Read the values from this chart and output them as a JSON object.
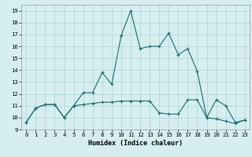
{
  "title": "",
  "xlabel": "Humidex (Indice chaleur)",
  "bg_color": "#d6eef0",
  "grid_color": "#b0d8dc",
  "line_color": "#1a6b6b",
  "xlim": [
    -0.5,
    23.5
  ],
  "ylim": [
    9,
    19.5
  ],
  "xticks": [
    0,
    1,
    2,
    3,
    4,
    5,
    6,
    7,
    8,
    9,
    10,
    11,
    12,
    13,
    14,
    15,
    16,
    17,
    18,
    19,
    20,
    21,
    22,
    23
  ],
  "yticks": [
    9,
    10,
    11,
    12,
    13,
    14,
    15,
    16,
    17,
    18,
    19
  ],
  "series1_x": [
    0,
    1,
    2,
    3,
    4,
    5,
    6,
    7,
    8,
    9,
    10,
    11,
    12,
    13,
    14,
    15,
    16,
    17,
    18,
    19,
    20,
    21,
    22,
    23
  ],
  "series1_y": [
    9.6,
    10.8,
    11.1,
    11.1,
    10.0,
    11.0,
    12.1,
    12.1,
    13.8,
    12.8,
    16.9,
    19.0,
    15.8,
    16.0,
    16.0,
    17.1,
    15.3,
    15.8,
    13.9,
    10.0,
    11.5,
    11.0,
    9.6,
    9.8
  ],
  "series2_x": [
    0,
    1,
    2,
    3,
    4,
    5,
    6,
    7,
    8,
    9,
    10,
    11,
    12,
    13,
    14,
    15,
    16,
    17,
    18,
    19,
    20,
    21,
    22,
    23
  ],
  "series2_y": [
    9.6,
    10.8,
    11.1,
    11.1,
    10.0,
    11.0,
    11.1,
    11.2,
    11.3,
    11.3,
    11.4,
    11.4,
    11.4,
    11.4,
    10.4,
    10.3,
    10.3,
    11.5,
    11.5,
    10.0,
    9.9,
    9.7,
    9.5,
    9.8
  ],
  "tick_labelsize": 5.2,
  "xlabel_fontsize": 6.0
}
